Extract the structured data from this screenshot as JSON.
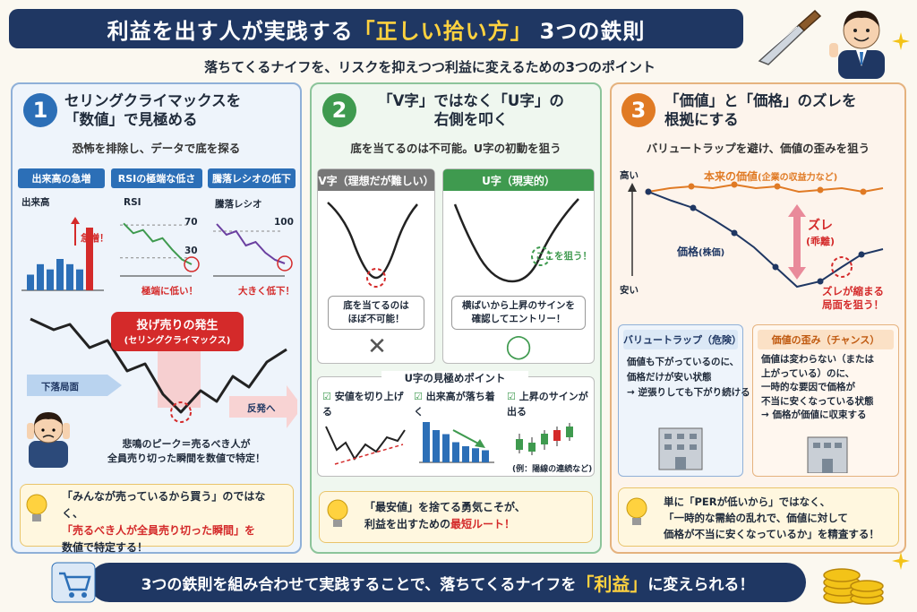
{
  "header": {
    "title_pre": "利益を出す人が実践する",
    "title_hl": "「正しい拾い方」",
    "title_post": "3つの鉄則",
    "subtitle": "落ちてくるナイフを、リスクを抑えつつ利益に変えるための3つのポイント"
  },
  "col1": {
    "num": "1",
    "head1": "セリングクライマックスを",
    "head2": "「数値」で見極める",
    "sub": "恐怖を排除し、データで底を探る",
    "tags": [
      "出来高の急増",
      "RSIの極端な低さ",
      "騰落レシオの低下"
    ],
    "chart1": {
      "label": "出来高",
      "note": "急増！",
      "values": [
        3,
        5,
        4,
        6,
        5,
        4,
        12
      ]
    },
    "chart2": {
      "label": "RSI",
      "l70": "70",
      "l30": "30",
      "note": "極端に低い！",
      "values": [
        72,
        60,
        64,
        50,
        54,
        40,
        28,
        22
      ]
    },
    "chart3": {
      "label": "騰落レシオ",
      "l100": "100",
      "note": "大きく低下！",
      "values": [
        110,
        95,
        100,
        80,
        85,
        70,
        60,
        55
      ]
    },
    "event1": "投げ売りの発生",
    "event2": "(セリングクライマックス)",
    "down": "下落局面",
    "rebound": "反発へ",
    "peak1": "悲鳴のピーク＝売るべき人が",
    "peak2": "全員売り切った瞬間を数値で特定！",
    "tip1": "「みんなが売っているから買う」のではなく、",
    "tip2": "「売るべき人が全員売り切った瞬間」を",
    "tip3": "数値で特定する！"
  },
  "col2": {
    "num": "2",
    "head1": "「V字」ではなく「U字」の",
    "head2": "右側を叩く",
    "sub": "底を当てるのは不可能。U字の初動を狙う",
    "v_title": "V字（理想だが難しい）",
    "u_title": "U字（現実的）",
    "v_box1": "底を当てるのは",
    "v_box2": "ほぼ不可能！",
    "u_note": "ここを狙う！",
    "u_box1": "横ばいから上昇のサインを",
    "u_box2": "確認してエントリー！",
    "v_mark": "✕",
    "u_mark": "◯",
    "points_title": "U字の見極めポイント",
    "points": [
      "安値を切り上げる",
      "出来高が落ち着く",
      "上昇のサインが出る"
    ],
    "points_note": "(例：陽線の連続など)",
    "tip1": "「最安値」を捨てる勇気こそが、",
    "tip2a": "利益を出すための",
    "tip2b": "最短ルート！"
  },
  "col3": {
    "num": "3",
    "head1": "「価値」と「価格」のズレを",
    "head2": "根拠にする",
    "sub": "バリュートラップを避け、価値の歪みを狙う",
    "high": "高い",
    "low": "安い",
    "value_label": "本来の価値",
    "value_sub": "(企業の収益力など)",
    "price_label": "価格",
    "price_sub": "(株価)",
    "gap1": "ズレ",
    "gap2": "(乖離)",
    "target1": "ズレが縮まる",
    "target2": "局面を狙う！",
    "trap_title": "バリュートラップ（危険）",
    "trap1": "価値も下がっているのに、",
    "trap2": "価格だけが安い状態",
    "trap3": "→ 逆張りしても下がり続ける",
    "dist_title": "価値の歪み（チャンス）",
    "dist1": "価値は変わらない（または",
    "dist2": "上がっている）のに、",
    "dist3": "一時的な要因で価格が",
    "dist4": "不当に安くなっている状態",
    "dist5": "→ 価格が価値に収束する",
    "tip1a": "単に「PERが低いから」ではなく、",
    "tip2": "「一時的な需給の乱れで、価値に対して",
    "tip3": "価格が不当に安くなっているか」を精査する！"
  },
  "footer": {
    "pre": "3つの鉄則を組み合わせて実践することで、落ちてくるナイフを",
    "hl": "「利益」",
    "post": "に変えられる！"
  },
  "colors": {
    "navy": "#1f3763",
    "blue": "#2c6fb7",
    "green": "#3f9a4f",
    "orange": "#e07a24",
    "red": "#d42a2a",
    "yellow": "#ffd23f"
  }
}
